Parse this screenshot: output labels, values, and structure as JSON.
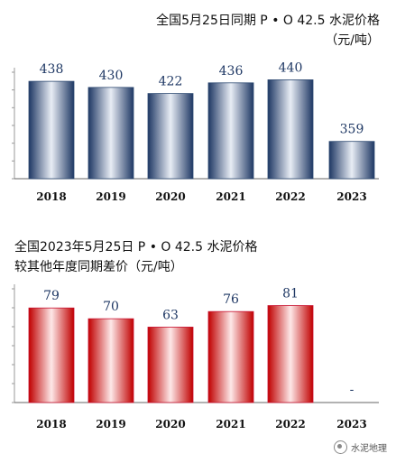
{
  "chart_data": [
    {
      "type": "bar",
      "title": "全国5月25日同期 P • O 42.5 水泥价格",
      "subtitle": "（元/吨）",
      "categories": [
        "2018",
        "2019",
        "2020",
        "2021",
        "2022",
        "2023"
      ],
      "values": [
        438,
        430,
        422,
        436,
        440,
        359
      ],
      "value_labels": [
        "438",
        "430",
        "422",
        "436",
        "440",
        "359"
      ],
      "ylim": [
        310,
        450
      ],
      "grid": false,
      "bar_color": "#2e4a72"
    },
    {
      "type": "bar",
      "title": "全国2023年5月25日 P • O 42.5 水泥价格",
      "subtitle": "较其他年度同期差价（元/吨）",
      "categories": [
        "2018",
        "2019",
        "2020",
        "2021",
        "2022",
        "2023"
      ],
      "values": [
        79,
        70,
        63,
        76,
        81,
        0
      ],
      "value_labels": [
        "79",
        "70",
        "63",
        "76",
        "81",
        "-"
      ],
      "ylim": [
        0,
        95
      ],
      "grid": false,
      "bar_color": "#c8102e"
    }
  ],
  "watermark": "水泥地理"
}
